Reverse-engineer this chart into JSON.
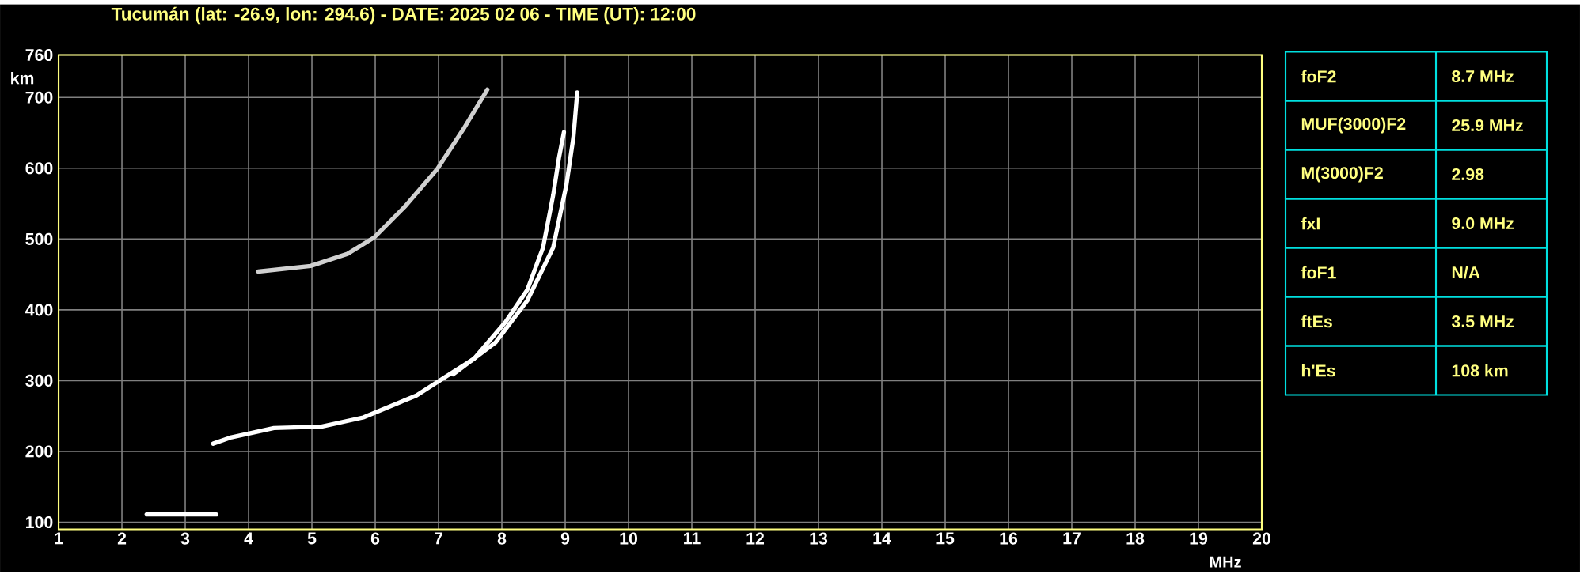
{
  "chart_data": {
    "type": "line",
    "title": "Tucumán (lat: -26.9, lon: 294.6) - DATE: 2025 02 06 - TIME (UT): 12:00",
    "xlabel": "MHz",
    "ylabel": "km",
    "xlim": [
      1,
      20
    ],
    "ylim": [
      90,
      760
    ],
    "xticks": [
      1,
      2,
      3,
      4,
      5,
      6,
      7,
      8,
      9,
      10,
      11,
      12,
      13,
      14,
      15,
      16,
      17,
      18,
      19,
      20
    ],
    "yticks": [
      100,
      200,
      300,
      400,
      500,
      600,
      700,
      760
    ],
    "grid": true,
    "marker": "none",
    "line_style": "solid",
    "series": [
      {
        "color": "#ffffff",
        "x": [
          3.44,
          3.73,
          4.4,
          5.15,
          5.81,
          6.65,
          6.98,
          7.56,
          8.06,
          8.4,
          8.65,
          8.81,
          8.9,
          8.98
        ],
        "values": [
          211,
          220,
          233,
          235,
          248,
          279,
          298,
          331,
          383,
          428,
          488,
          562,
          614,
          651
        ]
      },
      {
        "color": "#ffffff",
        "x": [
          7.23,
          7.9,
          8.4,
          8.81,
          9.02,
          9.13,
          9.19
        ],
        "values": [
          309,
          354,
          413,
          488,
          577,
          644,
          707
        ]
      },
      {
        "color": "#d0d0d0",
        "x": [
          4.15,
          4.98,
          5.56,
          5.98,
          6.48,
          6.98,
          7.39,
          7.77
        ],
        "values": [
          454,
          462,
          479,
          502,
          547,
          599,
          655,
          711
        ]
      },
      {
        "color": "#ffffff",
        "x": [
          2.39,
          3.49
        ],
        "values": [
          111,
          111
        ]
      }
    ],
    "annotations": [
      "foF2",
      "8.7 MHz",
      "MUF(3000)F2",
      "25.9 MHz",
      "M(3000)F2",
      "2.98",
      "fxI",
      "9.0 MHz",
      "foF1",
      "N/A",
      "ftEs",
      "3.5 MHz",
      "h'Es",
      "108 km"
    ]
  }
}
